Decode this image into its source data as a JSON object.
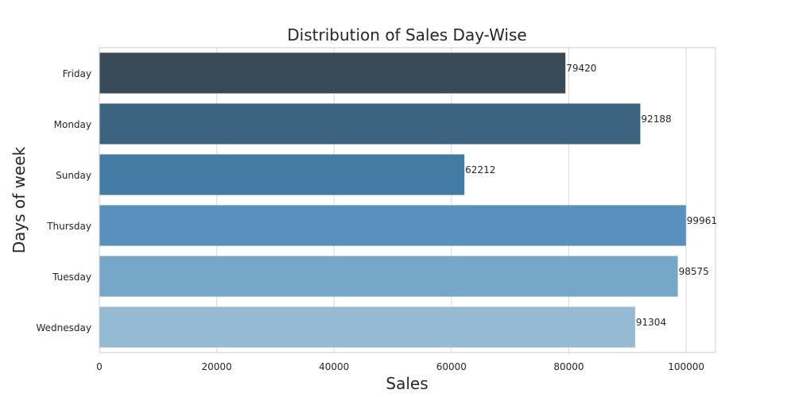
{
  "chart_data": {
    "type": "bar",
    "orientation": "horizontal",
    "title": "Distribution of Sales Day-Wise",
    "xlabel": "Sales",
    "ylabel": "Days of week",
    "categories": [
      "Friday",
      "Monday",
      "Sunday",
      "Thursday",
      "Tuesday",
      "Wednesday"
    ],
    "values": [
      79420,
      92188,
      62212,
      99961,
      98575,
      91304
    ],
    "data_labels": [
      "79420",
      "92188",
      "62212",
      "99961",
      "98575",
      "91304"
    ],
    "colors": [
      "#3b4a57",
      "#3c6380",
      "#427ba3",
      "#5891bd",
      "#77a7c8",
      "#96b9d4"
    ],
    "xlim": [
      0,
      105000
    ],
    "xticks": [
      0,
      20000,
      40000,
      60000,
      80000,
      100000
    ],
    "xtick_labels": [
      "0",
      "20000",
      "40000",
      "60000",
      "80000",
      "100000"
    ],
    "grid": true,
    "legend": null
  }
}
